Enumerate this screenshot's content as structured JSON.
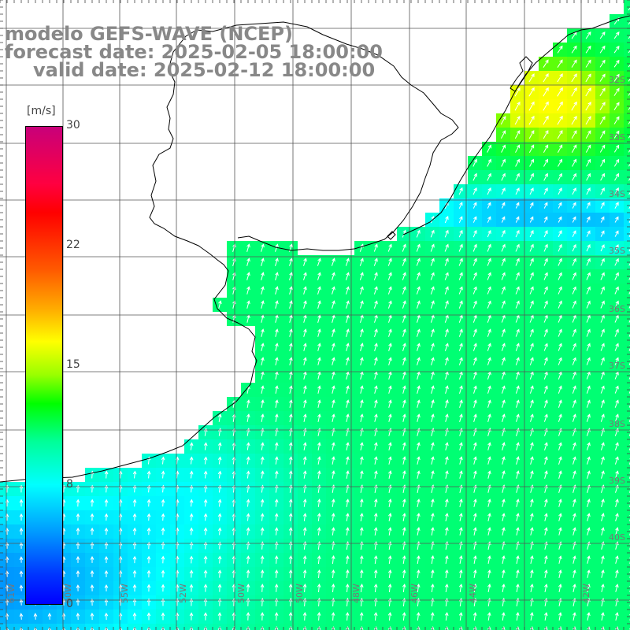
{
  "title": {
    "line1": "modelo GEFS-WAVE (NCEP)",
    "line2": "forecast date: 2025-02-05 18:00:00",
    "line3": "valid date: 2025-02-12 18:00:00"
  },
  "colorbar": {
    "unit": "[m/s]",
    "ticks": [
      "30",
      "22",
      "15",
      "8",
      "0"
    ],
    "min": 0,
    "max": 30
  },
  "lat_labels": [
    "32S",
    "33S",
    "34S",
    "35S",
    "36S",
    "37S",
    "38S",
    "39S",
    "40S"
  ],
  "lon_labels": [
    "61W",
    "60W",
    "55W",
    "52W",
    "50W",
    "50W",
    "48W",
    "46W",
    "44W",
    "42W"
  ],
  "colors": {
    "grid": "#555555",
    "coast": "#000000",
    "arrow": "#ffffff",
    "title": "#888888"
  },
  "chart_data": {
    "type": "heatmap",
    "variable": "wind speed",
    "unit": "m/s",
    "scale": [
      0,
      30
    ]
  }
}
